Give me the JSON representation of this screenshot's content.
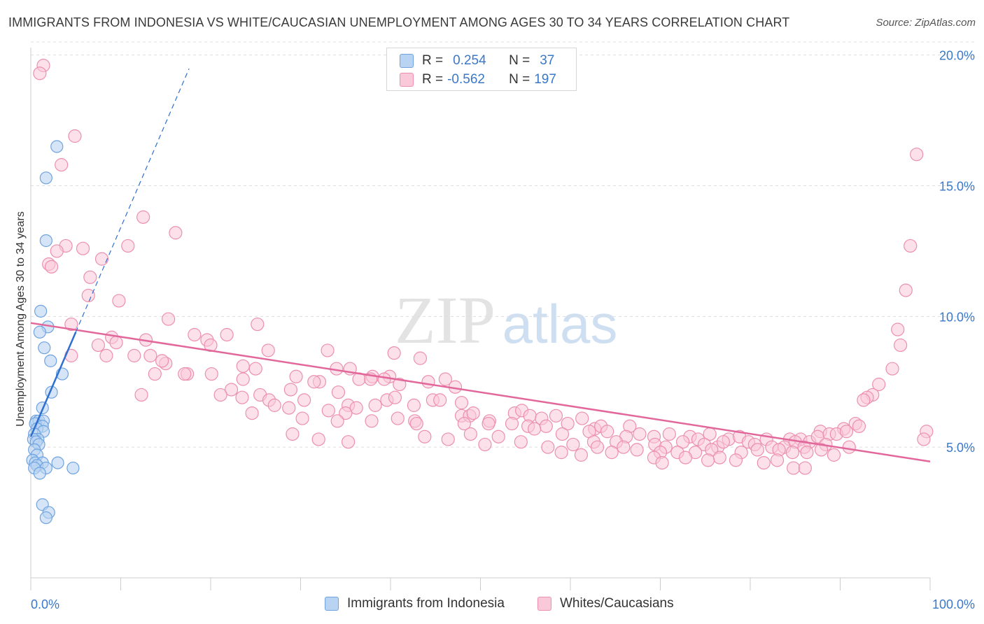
{
  "title": "IMMIGRANTS FROM INDONESIA VS WHITE/CAUCASIAN UNEMPLOYMENT AMONG AGES 30 TO 34 YEARS CORRELATION CHART",
  "source": "Source: ZipAtlas.com",
  "watermark": {
    "zip": "ZIP",
    "atlas": "atlas"
  },
  "legend": {
    "rows": [
      {
        "r_label": "R =",
        "r_value": "0.254",
        "n_label": "N =",
        "n_value": "37"
      },
      {
        "r_label": "R =",
        "r_value": "-0.562",
        "n_label": "N =",
        "n_value": "197"
      }
    ]
  },
  "chart_data": {
    "type": "scatter",
    "xlabel": "",
    "ylabel": "Unemployment Among Ages 30 to 34 years",
    "xlim": [
      0,
      100
    ],
    "ylim": [
      0,
      20.5
    ],
    "x_tick_labels": [
      "0.0%",
      "100.0%"
    ],
    "y_ticks": [
      5,
      10,
      15,
      20
    ],
    "y_tick_labels": [
      "5.0%",
      "10.0%",
      "15.0%",
      "20.0%"
    ],
    "grid": "horizontal dashed",
    "colors": {
      "indonesia": "#6fa3e0",
      "indonesia_fill": "#b9d3f2",
      "white": "#ec8fb0",
      "white_fill": "#f9c9d9",
      "indonesia_line": "#2f6fd0",
      "white_line": "#e2679a"
    },
    "series": [
      {
        "name": "Immigrants from Indonesia",
        "r": 0.254,
        "n": 37,
        "trend": {
          "x0": 0.0,
          "y0": 5.4,
          "x1": 5.0,
          "y1": 9.4,
          "extend_to_x": 17.6
        },
        "points": [
          [
            2.9,
            16.5
          ],
          [
            1.7,
            15.3
          ],
          [
            1.7,
            12.9
          ],
          [
            1.1,
            10.2
          ],
          [
            1.9,
            9.6
          ],
          [
            1.0,
            9.4
          ],
          [
            1.5,
            8.8
          ],
          [
            2.2,
            8.3
          ],
          [
            3.5,
            7.8
          ],
          [
            2.3,
            7.1
          ],
          [
            1.3,
            6.5
          ],
          [
            0.6,
            6.0
          ],
          [
            0.9,
            6.0
          ],
          [
            1.4,
            6.0
          ],
          [
            0.5,
            5.9
          ],
          [
            1.3,
            5.8
          ],
          [
            0.7,
            5.7
          ],
          [
            1.4,
            5.6
          ],
          [
            0.4,
            5.5
          ],
          [
            0.8,
            5.3
          ],
          [
            0.3,
            5.3
          ],
          [
            0.6,
            5.2
          ],
          [
            0.9,
            5.1
          ],
          [
            0.4,
            4.9
          ],
          [
            0.7,
            4.7
          ],
          [
            0.2,
            4.5
          ],
          [
            0.5,
            4.4
          ],
          [
            3.0,
            4.4
          ],
          [
            1.3,
            4.4
          ],
          [
            0.7,
            4.3
          ],
          [
            4.7,
            4.2
          ],
          [
            1.7,
            4.2
          ],
          [
            0.4,
            4.2
          ],
          [
            1.0,
            4.0
          ],
          [
            1.3,
            2.8
          ],
          [
            2.0,
            2.5
          ],
          [
            1.7,
            2.3
          ]
        ]
      },
      {
        "name": "Whites/Caucasians",
        "r": -0.562,
        "n": 197,
        "trend": {
          "x0": 0.0,
          "y0": 9.75,
          "x1": 100.0,
          "y1": 4.45
        },
        "points": [
          [
            1.4,
            19.6
          ],
          [
            1.0,
            19.3
          ],
          [
            4.9,
            16.9
          ],
          [
            3.4,
            15.8
          ],
          [
            98.5,
            16.2
          ],
          [
            12.5,
            13.8
          ],
          [
            16.1,
            13.2
          ],
          [
            5.8,
            12.6
          ],
          [
            10.8,
            12.7
          ],
          [
            3.9,
            12.7
          ],
          [
            2.9,
            12.5
          ],
          [
            7.9,
            12.2
          ],
          [
            2.0,
            12.0
          ],
          [
            2.3,
            11.9
          ],
          [
            6.6,
            11.5
          ],
          [
            97.8,
            12.7
          ],
          [
            97.3,
            11.0
          ],
          [
            6.4,
            10.8
          ],
          [
            9.8,
            10.6
          ],
          [
            15.3,
            9.9
          ],
          [
            4.5,
            9.7
          ],
          [
            25.2,
            9.7
          ],
          [
            96.4,
            9.5
          ],
          [
            18.2,
            9.3
          ],
          [
            21.8,
            9.3
          ],
          [
            9.0,
            9.2
          ],
          [
            12.8,
            9.1
          ],
          [
            9.5,
            9.0
          ],
          [
            19.6,
            9.1
          ],
          [
            20.0,
            8.9
          ],
          [
            7.5,
            8.9
          ],
          [
            96.7,
            8.9
          ],
          [
            26.4,
            8.7
          ],
          [
            33.0,
            8.7
          ],
          [
            11.5,
            8.5
          ],
          [
            8.4,
            8.5
          ],
          [
            4.5,
            8.5
          ],
          [
            13.3,
            8.5
          ],
          [
            40.4,
            8.6
          ],
          [
            15.0,
            8.2
          ],
          [
            14.6,
            8.3
          ],
          [
            95.8,
            8.0
          ],
          [
            23.6,
            8.1
          ],
          [
            25.0,
            8.0
          ],
          [
            35.5,
            8.0
          ],
          [
            34.0,
            8.0
          ],
          [
            43.3,
            8.4
          ],
          [
            17.4,
            7.8
          ],
          [
            13.8,
            7.8
          ],
          [
            20.1,
            7.8
          ],
          [
            17.1,
            7.8
          ],
          [
            29.5,
            7.7
          ],
          [
            38.0,
            7.7
          ],
          [
            39.9,
            7.7
          ],
          [
            23.6,
            7.6
          ],
          [
            39.3,
            7.6
          ],
          [
            36.5,
            7.6
          ],
          [
            44.2,
            7.5
          ],
          [
            46.1,
            7.6
          ],
          [
            37.8,
            7.6
          ],
          [
            47.2,
            7.3
          ],
          [
            32.1,
            7.5
          ],
          [
            31.5,
            7.5
          ],
          [
            41.0,
            7.4
          ],
          [
            94.3,
            7.4
          ],
          [
            22.3,
            7.2
          ],
          [
            28.9,
            7.2
          ],
          [
            25.5,
            7.0
          ],
          [
            34.2,
            7.1
          ],
          [
            21.1,
            7.0
          ],
          [
            30.4,
            6.8
          ],
          [
            23.5,
            6.9
          ],
          [
            12.3,
            7.0
          ],
          [
            26.5,
            6.8
          ],
          [
            39.6,
            6.8
          ],
          [
            44.7,
            6.8
          ],
          [
            93.6,
            7.0
          ],
          [
            40.5,
            6.9
          ],
          [
            38.3,
            6.6
          ],
          [
            27.1,
            6.6
          ],
          [
            35.3,
            6.6
          ],
          [
            28.7,
            6.5
          ],
          [
            36.2,
            6.5
          ],
          [
            45.5,
            6.8
          ],
          [
            42.6,
            6.6
          ],
          [
            47.9,
            6.7
          ],
          [
            93.0,
            6.9
          ],
          [
            92.6,
            6.8
          ],
          [
            24.6,
            6.3
          ],
          [
            33.1,
            6.4
          ],
          [
            35.0,
            6.3
          ],
          [
            40.8,
            6.1
          ],
          [
            47.9,
            6.2
          ],
          [
            48.8,
            6.2
          ],
          [
            49.2,
            6.3
          ],
          [
            51.0,
            6.0
          ],
          [
            53.8,
            6.3
          ],
          [
            54.6,
            6.4
          ],
          [
            55.5,
            6.2
          ],
          [
            58.4,
            6.2
          ],
          [
            56.8,
            6.1
          ],
          [
            61.3,
            6.1
          ],
          [
            59.7,
            5.9
          ],
          [
            30.2,
            6.1
          ],
          [
            34.1,
            6.0
          ],
          [
            37.9,
            6.0
          ],
          [
            42.7,
            6.0
          ],
          [
            42.9,
            5.9
          ],
          [
            48.2,
            5.9
          ],
          [
            50.9,
            5.9
          ],
          [
            53.5,
            5.9
          ],
          [
            55.3,
            5.8
          ],
          [
            57.3,
            5.8
          ],
          [
            62.7,
            5.7
          ],
          [
            63.4,
            5.8
          ],
          [
            66.6,
            5.8
          ],
          [
            64.1,
            5.6
          ],
          [
            87.8,
            5.6
          ],
          [
            90.4,
            5.7
          ],
          [
            91.7,
            5.9
          ],
          [
            92.1,
            5.8
          ],
          [
            99.6,
            5.6
          ],
          [
            99.3,
            5.3
          ],
          [
            56.0,
            5.7
          ],
          [
            59.1,
            5.5
          ],
          [
            62.1,
            5.6
          ],
          [
            48.9,
            5.5
          ],
          [
            52.0,
            5.4
          ],
          [
            29.1,
            5.5
          ],
          [
            69.3,
            5.4
          ],
          [
            67.7,
            5.5
          ],
          [
            66.2,
            5.4
          ],
          [
            73.3,
            5.4
          ],
          [
            71.0,
            5.5
          ],
          [
            75.5,
            5.5
          ],
          [
            74.2,
            5.3
          ],
          [
            77.6,
            5.3
          ],
          [
            78.8,
            5.4
          ],
          [
            79.8,
            5.2
          ],
          [
            81.8,
            5.3
          ],
          [
            84.4,
            5.3
          ],
          [
            85.6,
            5.3
          ],
          [
            86.6,
            5.2
          ],
          [
            87.5,
            5.4
          ],
          [
            88.8,
            5.5
          ],
          [
            89.6,
            5.5
          ],
          [
            90.7,
            5.6
          ],
          [
            32.0,
            5.3
          ],
          [
            35.3,
            5.2
          ],
          [
            43.8,
            5.4
          ],
          [
            46.4,
            5.3
          ],
          [
            50.5,
            5.1
          ],
          [
            54.5,
            5.2
          ],
          [
            57.5,
            5.0
          ],
          [
            60.3,
            5.1
          ],
          [
            62.6,
            5.2
          ],
          [
            65.1,
            5.2
          ],
          [
            69.4,
            5.1
          ],
          [
            70.6,
            5.0
          ],
          [
            72.5,
            5.2
          ],
          [
            74.9,
            5.1
          ],
          [
            76.4,
            5.0
          ],
          [
            77.0,
            5.2
          ],
          [
            80.5,
            5.1
          ],
          [
            82.4,
            5.0
          ],
          [
            83.8,
            5.0
          ],
          [
            85.0,
            5.2
          ],
          [
            86.0,
            5.0
          ],
          [
            88.4,
            5.1
          ],
          [
            91.0,
            5.0
          ],
          [
            63.0,
            5.0
          ],
          [
            65.9,
            5.0
          ],
          [
            67.4,
            4.9
          ],
          [
            70.0,
            4.8
          ],
          [
            71.9,
            4.8
          ],
          [
            73.9,
            4.8
          ],
          [
            75.7,
            4.9
          ],
          [
            79.0,
            4.8
          ],
          [
            80.8,
            4.9
          ],
          [
            83.2,
            4.9
          ],
          [
            84.7,
            4.8
          ],
          [
            86.3,
            4.8
          ],
          [
            87.9,
            4.9
          ],
          [
            89.3,
            4.7
          ],
          [
            59.0,
            4.8
          ],
          [
            61.2,
            4.7
          ],
          [
            64.6,
            4.8
          ],
          [
            69.3,
            4.6
          ],
          [
            72.8,
            4.6
          ],
          [
            76.6,
            4.6
          ],
          [
            78.4,
            4.5
          ],
          [
            81.5,
            4.4
          ],
          [
            83.0,
            4.5
          ],
          [
            84.8,
            4.2
          ],
          [
            86.1,
            4.2
          ],
          [
            75.3,
            4.5
          ],
          [
            70.2,
            4.4
          ]
        ]
      }
    ]
  }
}
